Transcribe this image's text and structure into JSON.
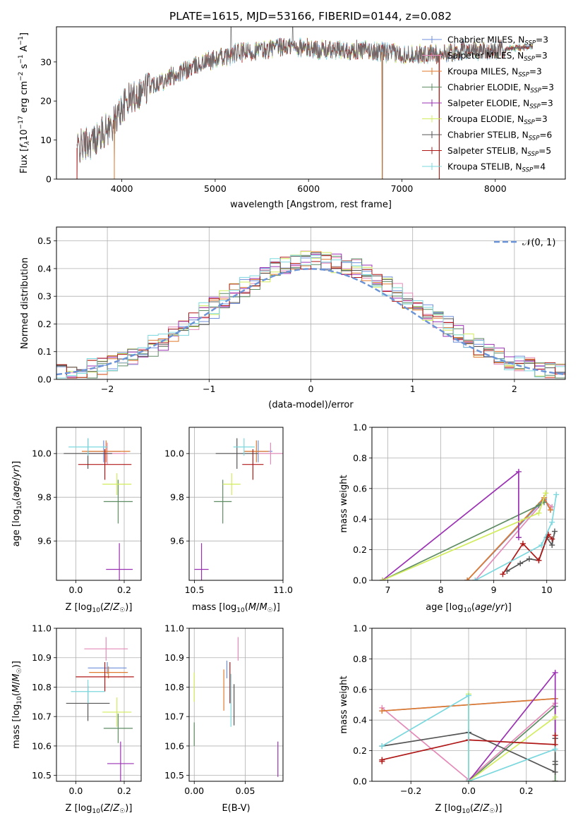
{
  "figure_title": "PLATE=1615, MJD=53166, FIBERID=0144, z=0.082",
  "palette": {
    "Chabrier MILES": "#6f8fdc",
    "Salpeter MILES": "#e48ab8",
    "Kroupa MILES": "#e07a2e",
    "Chabrier ELODIE": "#5e8c63",
    "Salpeter ELODIE": "#9b31b3",
    "Kroupa ELODIE": "#d1ec5c",
    "Chabrier STELIB": "#555555",
    "Salpeter STELIB": "#b01818",
    "Kroupa STELIB": "#7bd8de"
  },
  "legend_items": [
    {
      "base": "Chabrier MILES, N",
      "sub": "SSP",
      "tail": "=3",
      "color": "#6f8fdc"
    },
    {
      "base": "Salpeter MILES, N",
      "sub": "SSP",
      "tail": "=3",
      "color": "#e48ab8"
    },
    {
      "base": "Kroupa MILES, N",
      "sub": "SSP",
      "tail": "=3",
      "color": "#e07a2e"
    },
    {
      "base": "Chabrier ELODIE, N",
      "sub": "SSP",
      "tail": "=3",
      "color": "#5e8c63"
    },
    {
      "base": "Salpeter ELODIE, N",
      "sub": "SSP",
      "tail": "=3",
      "color": "#9b31b3"
    },
    {
      "base": "Kroupa ELODIE, N",
      "sub": "SSP",
      "tail": "=3",
      "color": "#d1ec5c"
    },
    {
      "base": "Chabrier STELIB, N",
      "sub": "SSP",
      "tail": "=6",
      "color": "#555555"
    },
    {
      "base": "Salpeter STELIB, N",
      "sub": "SSP",
      "tail": "=5",
      "color": "#b01818"
    },
    {
      "base": "Kroupa STELIB, N",
      "sub": "SSP",
      "tail": "=4",
      "color": "#7bd8de"
    }
  ],
  "chart_data": [
    {
      "id": "spectrum",
      "type": "line",
      "xlabel": "wavelength [Angstrom, rest frame]",
      "ylabel": "Flux [f_λ 10^-17 erg cm^-2 s^-1 A^-1]",
      "xlim": [
        3300,
        8750
      ],
      "ylim": [
        0,
        39
      ],
      "xticks": [
        4000,
        5000,
        6000,
        7000,
        8000
      ],
      "yticks": [
        0,
        10,
        20,
        30
      ],
      "grid": false,
      "legend": "upper right",
      "trend": [
        [
          3520,
          8
        ],
        [
          3700,
          10
        ],
        [
          3900,
          14
        ],
        [
          4050,
          20
        ],
        [
          4300,
          24
        ],
        [
          4600,
          27
        ],
        [
          4900,
          30
        ],
        [
          5200,
          32
        ],
        [
          5500,
          33
        ],
        [
          5800,
          34
        ],
        [
          6200,
          33
        ],
        [
          6600,
          33
        ],
        [
          7000,
          32
        ],
        [
          7400,
          32
        ],
        [
          7700,
          33
        ],
        [
          8000,
          33
        ],
        [
          8400,
          34
        ]
      ],
      "glitches": [
        [
          3520,
          0
        ],
        [
          3920,
          0
        ],
        [
          6790,
          0
        ],
        [
          7400,
          0
        ],
        [
          5170,
          39
        ],
        [
          5830,
          39
        ]
      ]
    },
    {
      "id": "residual_hist",
      "type": "area",
      "xlabel": "(data-model)/error",
      "ylabel": "Normed distribution",
      "xlim": [
        -2.5,
        2.5
      ],
      "ylim": [
        0,
        0.55
      ],
      "xticks": [
        -2,
        -1,
        0,
        1,
        2
      ],
      "yticks": [
        0,
        0.1,
        0.2,
        0.3,
        0.4,
        0.5
      ],
      "grid": true,
      "bins": {
        "start": -2.5,
        "width": 0.1,
        "count": 50
      },
      "reference": {
        "name": "𝒩(0, 1)",
        "color": "#6a93d8"
      },
      "legend": "upper right"
    },
    {
      "id": "age_vs_Z",
      "type": "scatter",
      "xlabel": "Z [log10(Z/Z☉)]",
      "ylabel": "age [log10(age/yr)]",
      "xlim": [
        -0.08,
        0.27
      ],
      "ylim": [
        9.42,
        10.12
      ],
      "xticks": [
        0.0,
        0.2
      ],
      "yticks": [
        9.6,
        9.8,
        10.0
      ],
      "grid": true,
      "points": [
        {
          "model": "Chabrier MILES",
          "x": 0.115,
          "y": 10.01,
          "xerr": 0.07,
          "yerr": 0.05
        },
        {
          "model": "Salpeter MILES",
          "x": 0.13,
          "y": 10.0,
          "xerr": 0.08,
          "yerr": 0.05
        },
        {
          "model": "Kroupa MILES",
          "x": 0.125,
          "y": 10.01,
          "xerr": 0.1,
          "yerr": 0.05
        },
        {
          "model": "Chabrier ELODIE",
          "x": 0.175,
          "y": 9.78,
          "xerr": 0.06,
          "yerr": 0.1
        },
        {
          "model": "Salpeter ELODIE",
          "x": 0.18,
          "y": 9.47,
          "xerr": 0.055,
          "yerr": 0.12
        },
        {
          "model": "Kroupa ELODIE",
          "x": 0.17,
          "y": 9.86,
          "xerr": 0.06,
          "yerr": 0.05
        },
        {
          "model": "Chabrier STELIB",
          "x": 0.05,
          "y": 10.0,
          "xerr": 0.1,
          "yerr": 0.07
        },
        {
          "model": "Salpeter STELIB",
          "x": 0.12,
          "y": 9.95,
          "xerr": 0.11,
          "yerr": 0.07
        },
        {
          "model": "Kroupa STELIB",
          "x": 0.05,
          "y": 10.03,
          "xerr": 0.08,
          "yerr": 0.04
        }
      ]
    },
    {
      "id": "age_vs_mass",
      "type": "scatter",
      "xlabel": "mass [log10(M/M☉)]",
      "ylabel": "",
      "xlim": [
        10.47,
        11.0
      ],
      "ylim": [
        9.42,
        10.12
      ],
      "xticks": [
        10.5,
        11.0
      ],
      "yticks": [
        9.6,
        9.8,
        10.0
      ],
      "grid": true,
      "points": [
        {
          "model": "Chabrier MILES",
          "x": 10.86,
          "y": 10.01,
          "xerr": 0.08,
          "yerr": 0.05
        },
        {
          "model": "Salpeter MILES",
          "x": 10.93,
          "y": 10.0,
          "xerr": 0.07,
          "yerr": 0.05
        },
        {
          "model": "Kroupa MILES",
          "x": 10.85,
          "y": 10.01,
          "xerr": 0.07,
          "yerr": 0.05
        },
        {
          "model": "Chabrier ELODIE",
          "x": 10.66,
          "y": 9.78,
          "xerr": 0.05,
          "yerr": 0.1
        },
        {
          "model": "Salpeter ELODIE",
          "x": 10.54,
          "y": 9.47,
          "xerr": 0.04,
          "yerr": 0.12
        },
        {
          "model": "Kroupa ELODIE",
          "x": 10.71,
          "y": 9.86,
          "xerr": 0.05,
          "yerr": 0.05
        },
        {
          "model": "Chabrier STELIB",
          "x": 10.74,
          "y": 10.0,
          "xerr": 0.12,
          "yerr": 0.07
        },
        {
          "model": "Salpeter STELIB",
          "x": 10.83,
          "y": 9.95,
          "xerr": 0.06,
          "yerr": 0.07
        },
        {
          "model": "Kroupa STELIB",
          "x": 10.78,
          "y": 10.03,
          "xerr": 0.06,
          "yerr": 0.04
        }
      ]
    },
    {
      "id": "massweight_vs_age",
      "type": "line",
      "xlabel": "age [log10(age/yr)]",
      "ylabel": "mass weight",
      "xlim": [
        6.7,
        10.35
      ],
      "ylim": [
        0,
        1.0
      ],
      "xticks": [
        7,
        8,
        9,
        10
      ],
      "yticks": [
        0.0,
        0.2,
        0.4,
        0.6,
        0.8,
        1.0
      ],
      "grid": true,
      "series": [
        {
          "model": "Chabrier MILES",
          "x": [
            8.5,
            9.95,
            10.07
          ],
          "y": [
            0.0,
            0.53,
            0.46
          ]
        },
        {
          "model": "Salpeter MILES",
          "x": [
            8.65,
            9.95,
            10.1
          ],
          "y": [
            0.0,
            0.52,
            0.48
          ]
        },
        {
          "model": "Kroupa MILES",
          "x": [
            8.5,
            9.95,
            10.07
          ],
          "y": [
            0.0,
            0.54,
            0.46
          ]
        },
        {
          "model": "Chabrier ELODIE",
          "x": [
            6.9,
            9.85,
            9.95
          ],
          "y": [
            0.0,
            0.49,
            0.51
          ]
        },
        {
          "model": "Salpeter ELODIE",
          "x": [
            6.9,
            9.47,
            9.47
          ],
          "y": [
            0.0,
            0.71,
            0.28
          ]
        },
        {
          "model": "Kroupa ELODIE",
          "x": [
            6.9,
            9.85,
            9.98
          ],
          "y": [
            0.0,
            0.44,
            0.57
          ]
        },
        {
          "model": "Chabrier STELIB",
          "x": [
            9.25,
            9.5,
            9.67,
            9.85,
            10.0,
            10.1,
            10.15
          ],
          "y": [
            0.06,
            0.11,
            0.14,
            0.13,
            0.28,
            0.23,
            0.32
          ]
        },
        {
          "model": "Salpeter STELIB",
          "x": [
            9.17,
            9.55,
            9.85,
            10.03,
            10.1
          ],
          "y": [
            0.04,
            0.24,
            0.13,
            0.3,
            0.27
          ]
        },
        {
          "model": "Kroupa STELIB",
          "x": [
            8.65,
            9.9,
            10.1,
            10.18
          ],
          "y": [
            0.0,
            0.23,
            0.38,
            0.56
          ]
        }
      ]
    },
    {
      "id": "mass_vs_Z",
      "type": "scatter",
      "xlabel": "Z [log10(Z/Z☉)]",
      "ylabel": "mass [log10(M/M☉)]",
      "xlim": [
        -0.08,
        0.27
      ],
      "ylim": [
        10.48,
        11.0
      ],
      "xticks": [
        0.0,
        0.2
      ],
      "yticks": [
        10.5,
        10.6,
        10.7,
        10.8,
        10.9,
        11.0
      ],
      "grid": true,
      "points": [
        {
          "model": "Chabrier MILES",
          "x": 0.13,
          "y": 10.865,
          "xerr": 0.08,
          "yerr": 0.02
        },
        {
          "model": "Salpeter MILES",
          "x": 0.125,
          "y": 10.93,
          "xerr": 0.09,
          "yerr": 0.04
        },
        {
          "model": "Kroupa MILES",
          "x": 0.135,
          "y": 10.85,
          "xerr": 0.08,
          "yerr": 0.02
        },
        {
          "model": "Chabrier ELODIE",
          "x": 0.175,
          "y": 10.66,
          "xerr": 0.06,
          "yerr": 0.05
        },
        {
          "model": "Salpeter ELODIE",
          "x": 0.185,
          "y": 10.54,
          "xerr": 0.055,
          "yerr": 0.075
        },
        {
          "model": "Kroupa ELODIE",
          "x": 0.17,
          "y": 10.715,
          "xerr": 0.06,
          "yerr": 0.05
        },
        {
          "model": "Chabrier STELIB",
          "x": 0.05,
          "y": 10.745,
          "xerr": 0.09,
          "yerr": 0.06
        },
        {
          "model": "Salpeter STELIB",
          "x": 0.12,
          "y": 10.835,
          "xerr": 0.12,
          "yerr": 0.05
        },
        {
          "model": "Kroupa STELIB",
          "x": 0.05,
          "y": 10.785,
          "xerr": 0.07,
          "yerr": 0.04
        }
      ]
    },
    {
      "id": "mass_vs_ebv",
      "type": "scatter",
      "xlabel": "E(B-V)",
      "ylabel": "",
      "xlim": [
        -0.005,
        0.087
      ],
      "ylim": [
        10.48,
        11.0
      ],
      "xticks": [
        0.0,
        0.05
      ],
      "yticks": [
        10.5,
        10.6,
        10.7,
        10.8,
        10.9,
        11.0
      ],
      "grid": true,
      "points": [
        {
          "model": "Chabrier MILES",
          "x": 0.032,
          "y": 10.86,
          "xerr": 0.0,
          "yerr": 0.03
        },
        {
          "model": "Salpeter MILES",
          "x": 0.043,
          "y": 10.93,
          "xerr": 0.0,
          "yerr": 0.04
        },
        {
          "model": "Kroupa MILES",
          "x": 0.029,
          "y": 10.79,
          "xerr": 0.0,
          "yerr": 0.07
        },
        {
          "model": "Chabrier ELODIE",
          "x": 0.0,
          "y": 10.64,
          "xerr": 0.0,
          "yerr": 0.04
        },
        {
          "model": "Salpeter ELODIE",
          "x": 0.082,
          "y": 10.555,
          "xerr": 0.0,
          "yerr": 0.06
        },
        {
          "model": "Kroupa ELODIE",
          "x": 0.0,
          "y": 10.8,
          "xerr": 0.0,
          "yerr": 0.05
        },
        {
          "model": "Chabrier STELIB",
          "x": 0.039,
          "y": 10.74,
          "xerr": 0.0,
          "yerr": 0.07
        },
        {
          "model": "Salpeter STELIB",
          "x": 0.035,
          "y": 10.815,
          "xerr": 0.0,
          "yerr": 0.07
        },
        {
          "model": "Kroupa STELIB",
          "x": 0.036,
          "y": 10.755,
          "xerr": 0.0,
          "yerr": 0.09
        }
      ]
    },
    {
      "id": "massweight_vs_Z",
      "type": "line",
      "xlabel": "Z [log10(Z/Z☉)]",
      "ylabel": "mass weight",
      "xlim": [
        -0.335,
        0.335
      ],
      "ylim": [
        0,
        1.0
      ],
      "xticks": [
        -0.2,
        0.0,
        0.2
      ],
      "yticks": [
        0.0,
        0.2,
        0.4,
        0.6,
        0.8,
        1.0
      ],
      "grid": true,
      "series": [
        {
          "model": "Chabrier MILES",
          "x": [
            -0.3,
            0.3,
            0.3
          ],
          "y": [
            0.46,
            0.54,
            0.0
          ]
        },
        {
          "model": "Salpeter MILES",
          "x": [
            -0.3,
            0.0,
            0.3
          ],
          "y": [
            0.48,
            0.01,
            0.51
          ]
        },
        {
          "model": "Kroupa MILES",
          "x": [
            -0.3,
            0.3,
            0.3
          ],
          "y": [
            0.46,
            0.54,
            0.0
          ]
        },
        {
          "model": "Chabrier ELODIE",
          "x": [
            0.0,
            0.3,
            0.3
          ],
          "y": [
            0.0,
            0.49,
            0.0
          ]
        },
        {
          "model": "Salpeter ELODIE",
          "x": [
            0.0,
            0.3,
            0.3
          ],
          "y": [
            0.0,
            0.71,
            0.28
          ]
        },
        {
          "model": "Kroupa ELODIE",
          "x": [
            0.0,
            0.0,
            0.3
          ],
          "y": [
            0.57,
            0.0,
            0.42
          ]
        },
        {
          "model": "Chabrier STELIB",
          "x": [
            -0.3,
            0.0,
            0.3,
            0.3,
            0.3,
            0.3
          ],
          "y": [
            0.23,
            0.32,
            0.06,
            0.11,
            0.13,
            0.28
          ]
        },
        {
          "model": "Salpeter STELIB",
          "x": [
            -0.3,
            -0.3,
            0.0,
            0.0,
            0.3,
            0.3
          ],
          "y": [
            0.13,
            0.14,
            0.27,
            0.27,
            0.24,
            0.3
          ]
        },
        {
          "model": "Kroupa STELIB",
          "x": [
            -0.3,
            0.0,
            0.0,
            0.3
          ],
          "y": [
            0.23,
            0.56,
            0.0,
            0.21
          ]
        }
      ]
    }
  ]
}
